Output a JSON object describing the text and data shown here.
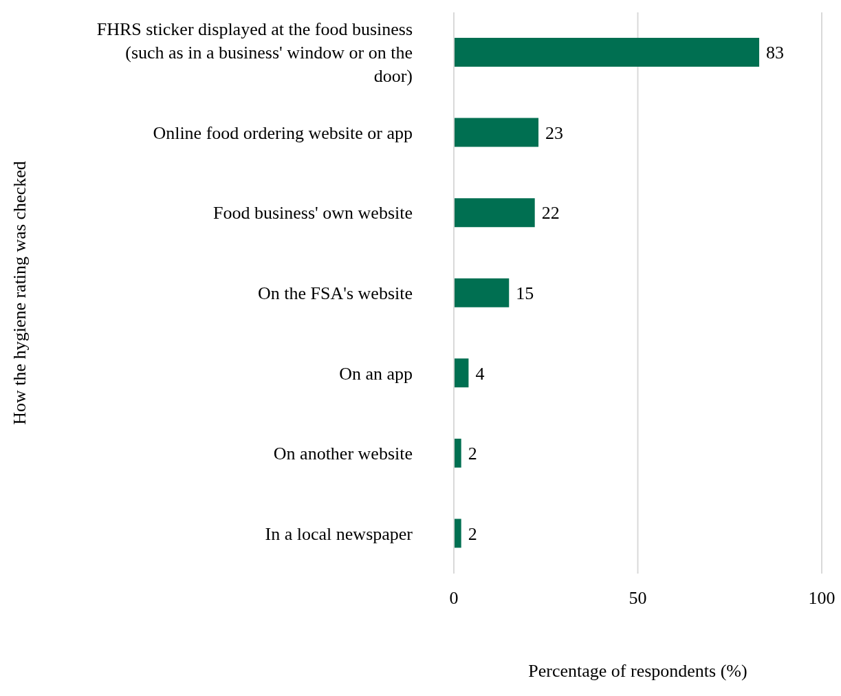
{
  "chart_data": {
    "type": "bar",
    "orientation": "horizontal",
    "categories": [
      "FHRS sticker displayed at the food business (such as in a business' window or on the door)",
      "Online food ordering website or app",
      "Food business' own website",
      "On the FSA's website",
      "On an app",
      "On another website",
      "In a local newspaper"
    ],
    "values": [
      83,
      23,
      22,
      15,
      4,
      2,
      2
    ],
    "color": "#006f51",
    "xlabel": "Percentage of respondents (%)",
    "ylabel": "How the hygiene rating was checked",
    "xlim": [
      0,
      100
    ],
    "xticks": [
      0,
      50,
      100
    ],
    "grid": "x",
    "data_labels": true
  }
}
